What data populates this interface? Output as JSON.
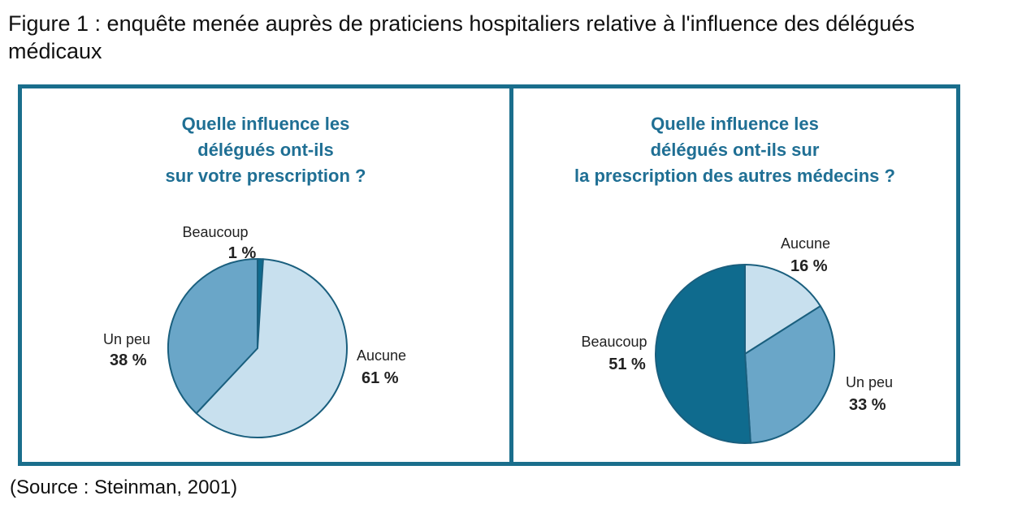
{
  "figure": {
    "title": "Figure 1 : enquête menée auprès de praticiens hospitaliers relative à l'influence des délégués médicaux",
    "source": "(Source : Steinman, 2001)"
  },
  "colors": {
    "frame": "#1a6e8c",
    "title": "#1f6f94",
    "aucune": "#c8e0ee",
    "un_peu": "#6aa6c8",
    "beaucoup": "#0f6b8e",
    "edge": "#1a5f7e"
  },
  "chart_data": [
    {
      "type": "pie",
      "title_lines": [
        "Quelle influence les",
        "délégués ont-ils",
        "sur votre prescription ?"
      ],
      "slices": [
        {
          "label": "Beaucoup",
          "value": 1,
          "value_label": "1 %",
          "color": "#0f6b8e"
        },
        {
          "label": "Aucune",
          "value": 61,
          "value_label": "61 %",
          "color": "#c8e0ee"
        },
        {
          "label": "Un peu",
          "value": 38,
          "value_label": "38 %",
          "color": "#6aa6c8"
        }
      ]
    },
    {
      "type": "pie",
      "title_lines": [
        "Quelle influence les",
        "délégués ont-ils sur",
        "la prescription des autres médecins ?"
      ],
      "slices": [
        {
          "label": "Aucune",
          "value": 16,
          "value_label": "16 %",
          "color": "#c8e0ee"
        },
        {
          "label": "Un peu",
          "value": 33,
          "value_label": "33 %",
          "color": "#6aa6c8"
        },
        {
          "label": "Beaucoup",
          "value": 51,
          "value_label": "51 %",
          "color": "#0f6b8e"
        }
      ]
    }
  ]
}
